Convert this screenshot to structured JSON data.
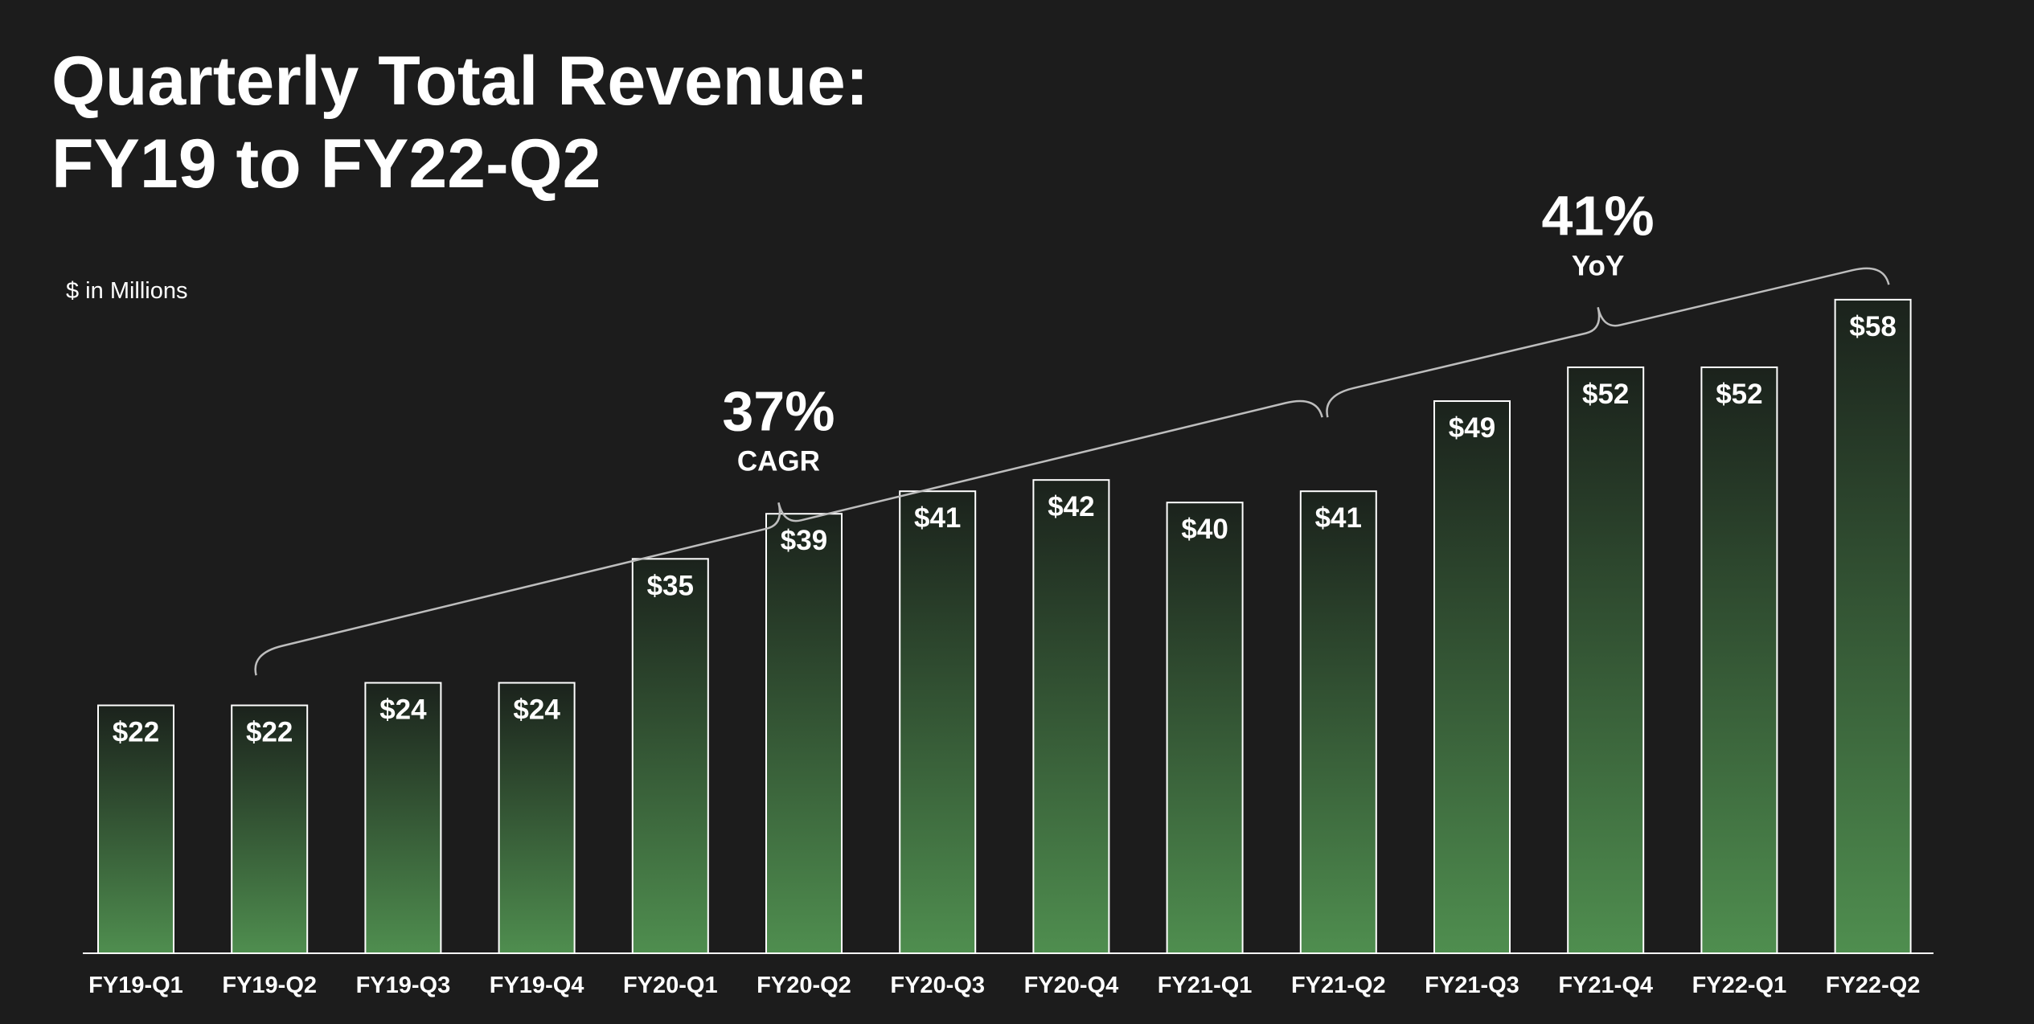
{
  "title": {
    "line1": "Quarterly Total Revenue:",
    "line2": "FY19 to FY22-Q2"
  },
  "units_label": "$ in Millions",
  "colors": {
    "background": "#1c1c1c",
    "bar_top": "#1b221c",
    "bar_bottom": "#4f8e4f",
    "bar_border": "#ffffff",
    "bracket": "#bdbdbd"
  },
  "chart_data": {
    "type": "bar",
    "categories": [
      "FY19-Q1",
      "FY19-Q2",
      "FY19-Q3",
      "FY19-Q4",
      "FY20-Q1",
      "FY20-Q2",
      "FY20-Q3",
      "FY20-Q4",
      "FY21-Q1",
      "FY21-Q2",
      "FY21-Q3",
      "FY21-Q4",
      "FY22-Q1",
      "FY22-Q2"
    ],
    "values": [
      22,
      22,
      24,
      24,
      35,
      39,
      41,
      42,
      40,
      41,
      49,
      52,
      52,
      58
    ],
    "value_labels": [
      "$22",
      "$22",
      "$24",
      "$24",
      "$35",
      "$39",
      "$41",
      "$42",
      "$40",
      "$41",
      "$49",
      "$52",
      "$52",
      "$58"
    ],
    "title": "Quarterly Total Revenue: FY19 to FY22-Q2",
    "ylabel": "$ in Millions",
    "ylim": [
      0,
      60
    ],
    "grid": false,
    "annotations": [
      {
        "value": "37%",
        "label": "CAGR",
        "from": "FY19-Q2",
        "to": "FY21-Q2"
      },
      {
        "value": "41%",
        "label": "YoY",
        "from": "FY21-Q2",
        "to": "FY22-Q2"
      }
    ]
  }
}
